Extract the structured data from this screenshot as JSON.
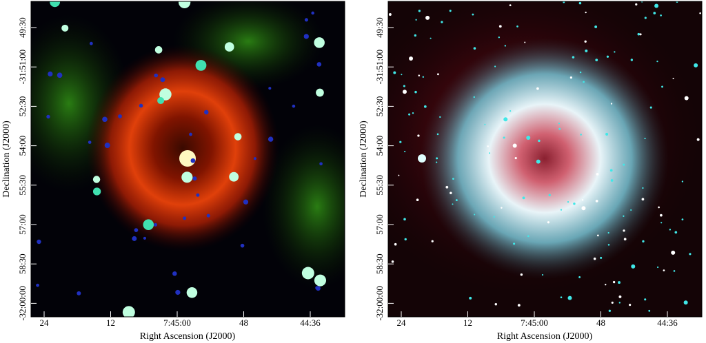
{
  "panels": [
    {
      "x_label": "Right Ascension (J2000)",
      "y_label": "Declination (J2000)",
      "x_ticks": [
        "24",
        "12",
        "7:45:00",
        "48",
        "44:36"
      ],
      "y_ticks": [
        "49:30",
        "-31:51:00",
        "52:30",
        "54:00",
        "55:30",
        "57:00",
        "58:30",
        "-32:00:00"
      ]
    },
    {
      "x_label": "Right Ascension (J2000)",
      "y_label": "Declination (J2000)",
      "x_ticks": [
        "24",
        "12",
        "7:45:00",
        "48",
        "44:36"
      ],
      "y_ticks": [
        "49:30",
        "-31:51:00",
        "52:30",
        "54:00",
        "55:30",
        "57:00",
        "58:30",
        "-32:00:00"
      ]
    }
  ]
}
